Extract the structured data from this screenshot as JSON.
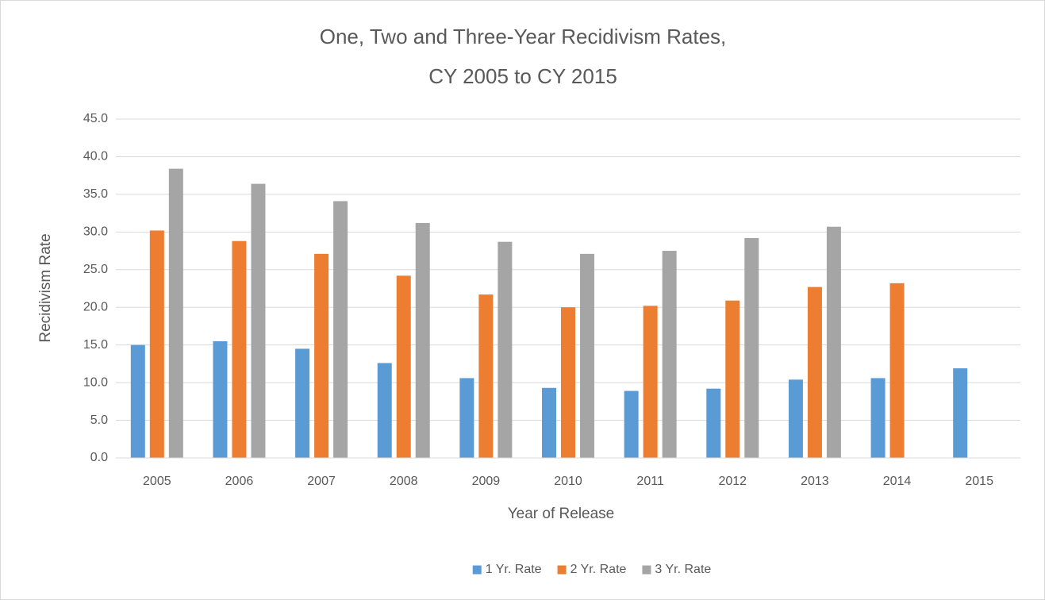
{
  "chart_data": {
    "type": "bar",
    "title": [
      "One, Two and Three-Year Recidivism Rates,",
      "CY 2005 to CY 2015"
    ],
    "x_label": "Year of Release",
    "y_label": "Recidivism Rate",
    "categories": [
      "2005",
      "2006",
      "2007",
      "2008",
      "2009",
      "2010",
      "2011",
      "2012",
      "2013",
      "2014",
      "2015"
    ],
    "series": [
      {
        "name": "1 Yr. Rate",
        "color": "#5b9bd5",
        "values": [
          15.0,
          15.5,
          14.5,
          12.6,
          10.6,
          9.3,
          8.9,
          9.2,
          10.4,
          10.6,
          11.9
        ]
      },
      {
        "name": "2 Yr. Rate",
        "color": "#ed7d31",
        "values": [
          30.2,
          28.8,
          27.1,
          24.2,
          21.7,
          20.0,
          20.2,
          20.9,
          22.7,
          23.2,
          null
        ]
      },
      {
        "name": "3 Yr. Rate",
        "color": "#a5a5a5",
        "values": [
          38.4,
          36.4,
          34.1,
          31.2,
          28.7,
          27.1,
          27.5,
          29.2,
          30.7,
          null,
          null
        ]
      }
    ],
    "ylim": [
      0,
      45
    ],
    "yticks": [
      {
        "value": 0,
        "label": "0.0"
      },
      {
        "value": 5,
        "label": "5.0"
      },
      {
        "value": 10,
        "label": "10.0"
      },
      {
        "value": 15,
        "label": "15.0"
      },
      {
        "value": 20,
        "label": "20.0"
      },
      {
        "value": 25,
        "label": "25.0"
      },
      {
        "value": 30,
        "label": "30.0"
      },
      {
        "value": 35,
        "label": "35.0"
      },
      {
        "value": 40,
        "label": "40.0"
      },
      {
        "value": 45,
        "label": "45.0"
      }
    ],
    "grid": true,
    "legend": "bottom"
  }
}
